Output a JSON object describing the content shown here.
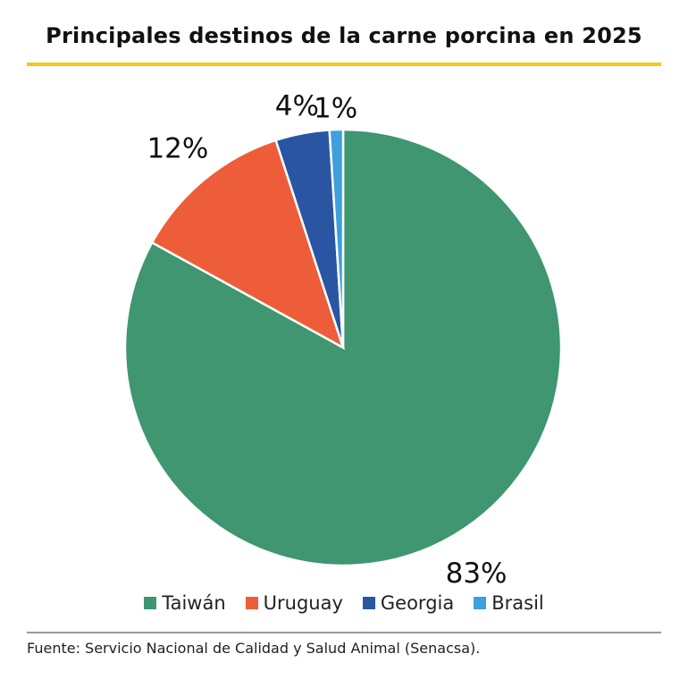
{
  "chart_data": {
    "type": "pie",
    "title": "Principales destinos de la carne porcina en 2025",
    "categories": [
      "Taiwán",
      "Uruguay",
      "Georgia",
      "Brasil"
    ],
    "values": [
      83,
      12,
      4,
      1
    ],
    "labels": [
      "83%",
      "12%",
      "4%",
      "1%"
    ],
    "colors": [
      "#3f9671",
      "#ee5d39",
      "#2a55a3",
      "#3d9fdc"
    ],
    "start": "top",
    "direction": "clockwise",
    "legend_position": "bottom",
    "source": "Fuente: Servicio Nacional de Calidad y Salud Animal (Senacsa)."
  }
}
